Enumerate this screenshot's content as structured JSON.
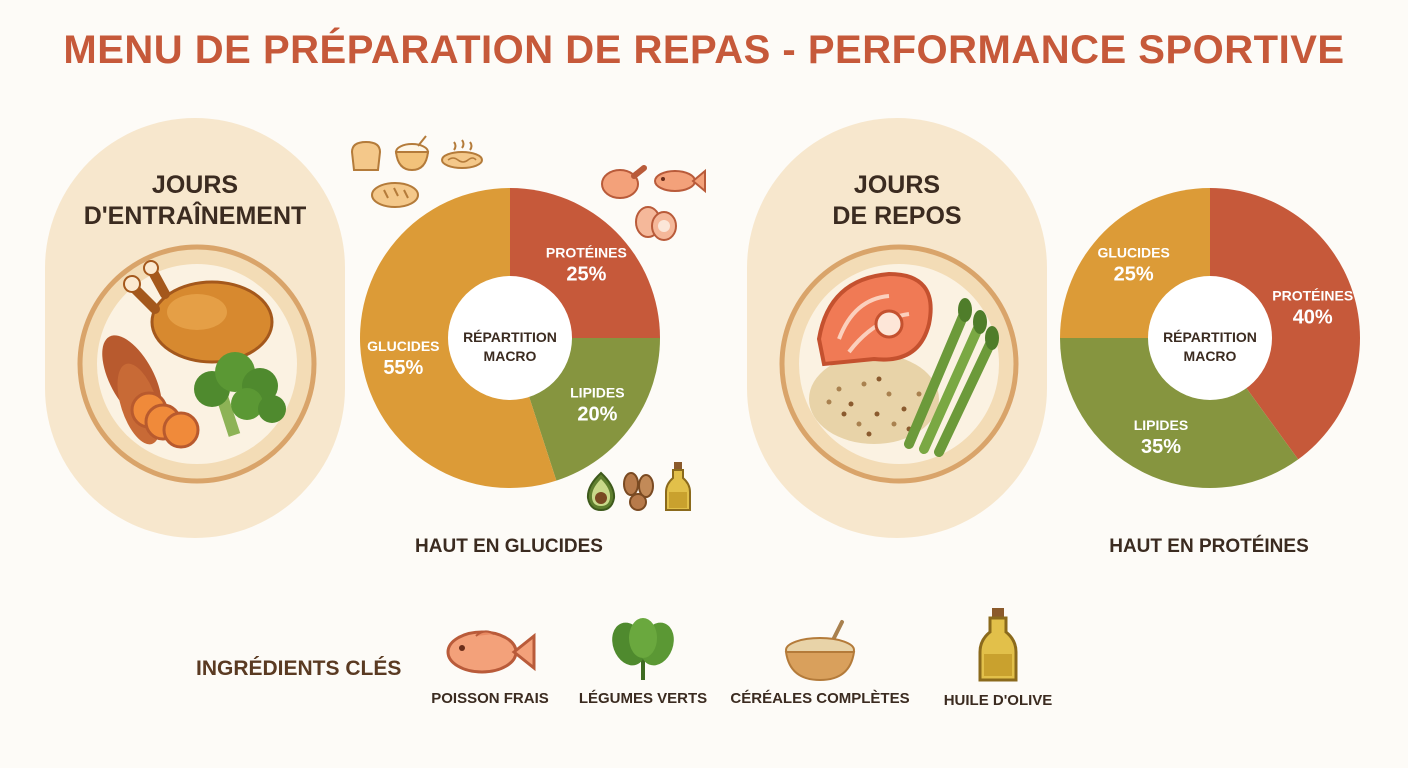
{
  "title": "MENU DE PRÉPARATION DE REPAS - PERFORMANCE SPORTIVE",
  "colors": {
    "title": "#c6593a",
    "proteines": "#c6593a",
    "glucides": "#dc9b37",
    "lipides": "#86953f",
    "panel": "#f7e7cd"
  },
  "training": {
    "title_line1": "JOURS",
    "title_line2": "D'ENTRAÎNEMENT",
    "emphasis": "HAUT EN GLUCIDES",
    "center_line1": "RÉPARTITION",
    "center_line2": "MACRO",
    "plate_items": [
      "roast-chicken-icon",
      "sweet-potato-icon",
      "broccoli-icon"
    ],
    "deco_icons": [
      "bread-icon",
      "rice-bowl-icon",
      "noodles-icon",
      "baguette-icon",
      "chicken-leg-icon",
      "fish-icon",
      "eggs-icon",
      "avocado-icon",
      "nuts-icon",
      "oil-bottle-icon"
    ]
  },
  "rest": {
    "title_line1": "JOURS",
    "title_line2": "DE REPOS",
    "emphasis": "HAUT EN PROTÉINES",
    "center_line1": "RÉPARTITION",
    "center_line2": "MACRO",
    "plate_items": [
      "salmon-icon",
      "quinoa-icon",
      "asparagus-icon"
    ]
  },
  "chart_data": [
    {
      "type": "pie",
      "title": "JOURS D'ENTRAÎNEMENT",
      "categories": [
        "PROTÉINES",
        "LIPIDES",
        "GLUCIDES"
      ],
      "values": [
        25,
        20,
        55
      ],
      "labels": [
        "25%",
        "20%",
        "55%"
      ],
      "colors": [
        "#c6593a",
        "#86953f",
        "#dc9b37"
      ]
    },
    {
      "type": "pie",
      "title": "JOURS DE REPOS",
      "categories": [
        "PROTÉINES",
        "LIPIDES",
        "GLUCIDES"
      ],
      "values": [
        40,
        35,
        25
      ],
      "labels": [
        "40%",
        "35%",
        "25%"
      ],
      "colors": [
        "#c6593a",
        "#86953f",
        "#dc9b37"
      ]
    }
  ],
  "ingredients": {
    "heading": "INGRÉDIENTS CLÉS",
    "items": [
      {
        "label": "POISSON FRAIS",
        "icon": "fish-icon"
      },
      {
        "label": "LÉGUMES VERTS",
        "icon": "leafy-greens-icon"
      },
      {
        "label": "CÉRÉALES COMPLÈTES",
        "icon": "grain-bowl-icon"
      },
      {
        "label": "HUILE D'OLIVE",
        "icon": "olive-oil-icon"
      }
    ]
  }
}
